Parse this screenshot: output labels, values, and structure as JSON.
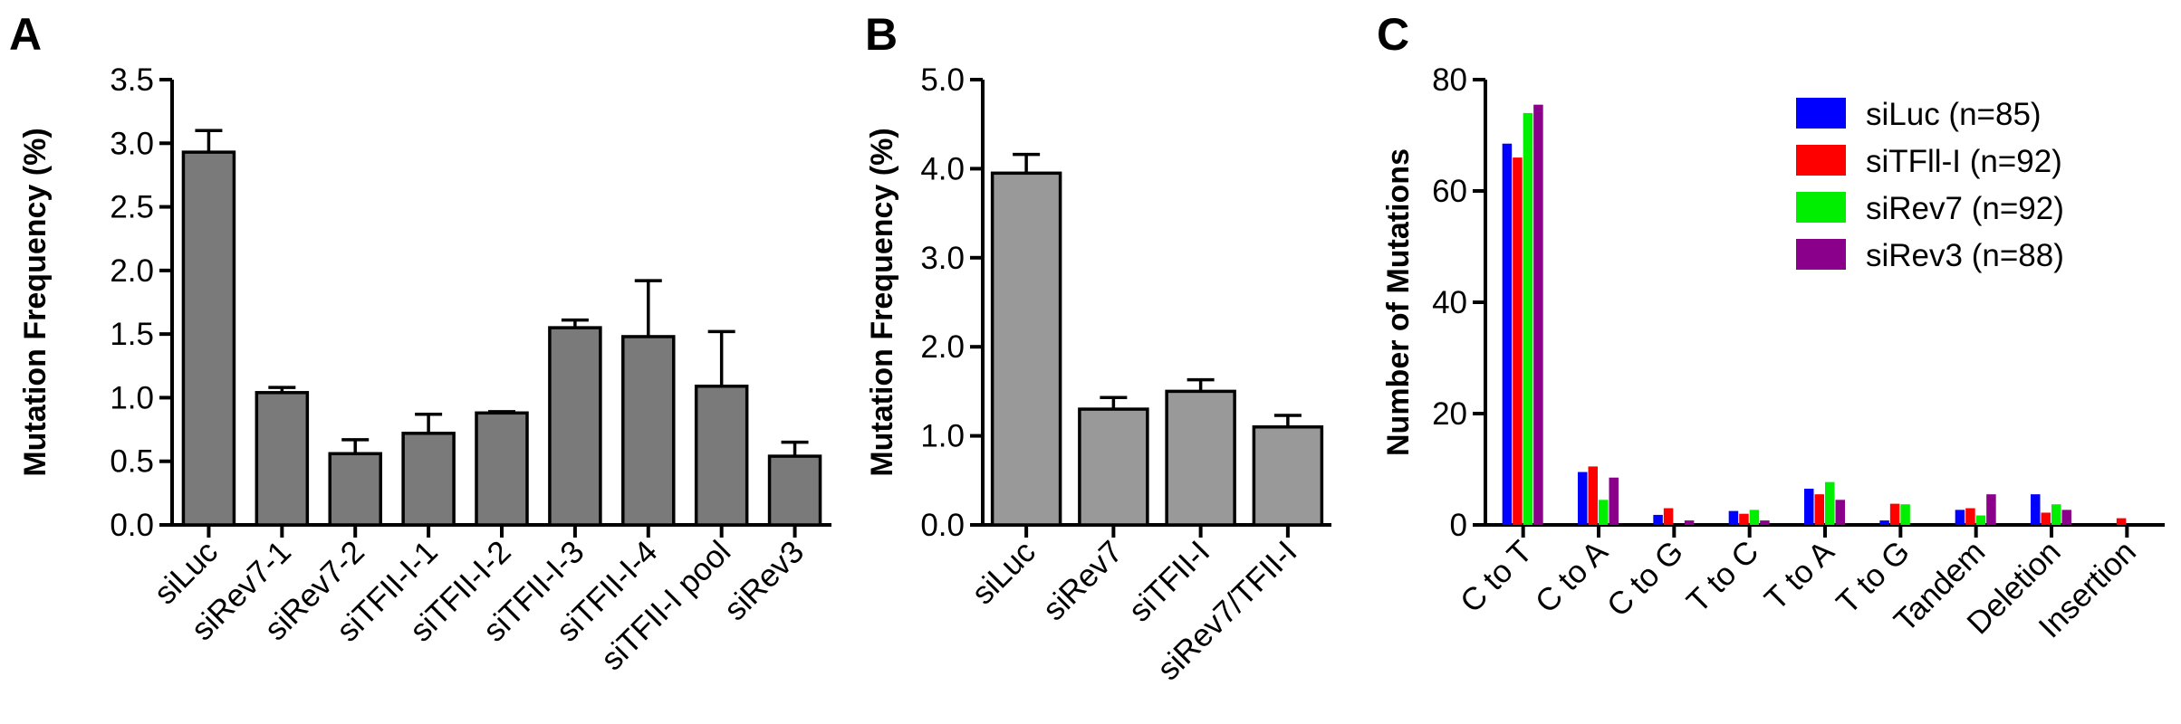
{
  "chart_data": [
    {
      "panel": "A",
      "type": "bar",
      "ylabel": "Mutation Frequency (%)",
      "ylim": [
        0,
        3.5
      ],
      "yticks": [
        "0.0",
        "0.5",
        "1.0",
        "1.5",
        "2.0",
        "2.5",
        "3.0",
        "3.5"
      ],
      "categories": [
        "siLuc",
        "siRev7-1",
        "siRev7-2",
        "siTFII-I-1",
        "siTFII-I-2",
        "siTFII-I-3",
        "siTFII-I-4",
        "siTFII-I pool",
        "siRev3"
      ],
      "values": [
        2.93,
        1.04,
        0.56,
        0.72,
        0.88,
        1.55,
        1.48,
        1.09,
        0.54
      ],
      "errors": [
        0.17,
        0.04,
        0.11,
        0.15,
        0.01,
        0.06,
        0.44,
        0.43,
        0.11
      ],
      "color": "#7a7a7a",
      "grid": false
    },
    {
      "panel": "B",
      "type": "bar",
      "ylabel": "Mutation Frequency (%)",
      "ylim": [
        0,
        5.0
      ],
      "yticks": [
        "0.0",
        "1.0",
        "2.0",
        "3.0",
        "4.0",
        "5.0"
      ],
      "categories": [
        "siLuc",
        "siRev7",
        "siTFII-I",
        "siRev7/TFII-I"
      ],
      "values": [
        3.95,
        1.3,
        1.5,
        1.1
      ],
      "errors": [
        0.21,
        0.13,
        0.13,
        0.13
      ],
      "color": "#999999",
      "grid": false
    },
    {
      "panel": "C",
      "type": "bar",
      "ylabel": "Number of Mutations",
      "ylim": [
        0,
        80
      ],
      "yticks": [
        "0",
        "20",
        "40",
        "60",
        "80"
      ],
      "categories": [
        "C to T",
        "C to A",
        "C to G",
        "T to C",
        "T to A",
        "T to G",
        "Tandem",
        "Deletion",
        "Insertion"
      ],
      "series": [
        {
          "name": "siLuc (n=85)",
          "color": "#0000ff",
          "values": [
            68.5,
            9.5,
            1.8,
            2.5,
            6.5,
            0.8,
            2.7,
            5.5,
            0
          ]
        },
        {
          "name": "siTFll-I (n=92)",
          "color": "#ff0000",
          "values": [
            66,
            10.5,
            3,
            2,
            5.5,
            3.8,
            3,
            2.2,
            1.2
          ]
        },
        {
          "name": "siRev7 (n=92)",
          "color": "#00ee00",
          "values": [
            74,
            4.5,
            0,
            2.7,
            7.7,
            3.7,
            1.7,
            3.7,
            0
          ]
        },
        {
          "name": "siRev3 (n=88)",
          "color": "#8b008b",
          "values": [
            75.5,
            8.5,
            0.8,
            0.8,
            4.5,
            0,
            5.5,
            2.7,
            0
          ]
        }
      ],
      "legend": "top-right",
      "grid": false
    }
  ]
}
